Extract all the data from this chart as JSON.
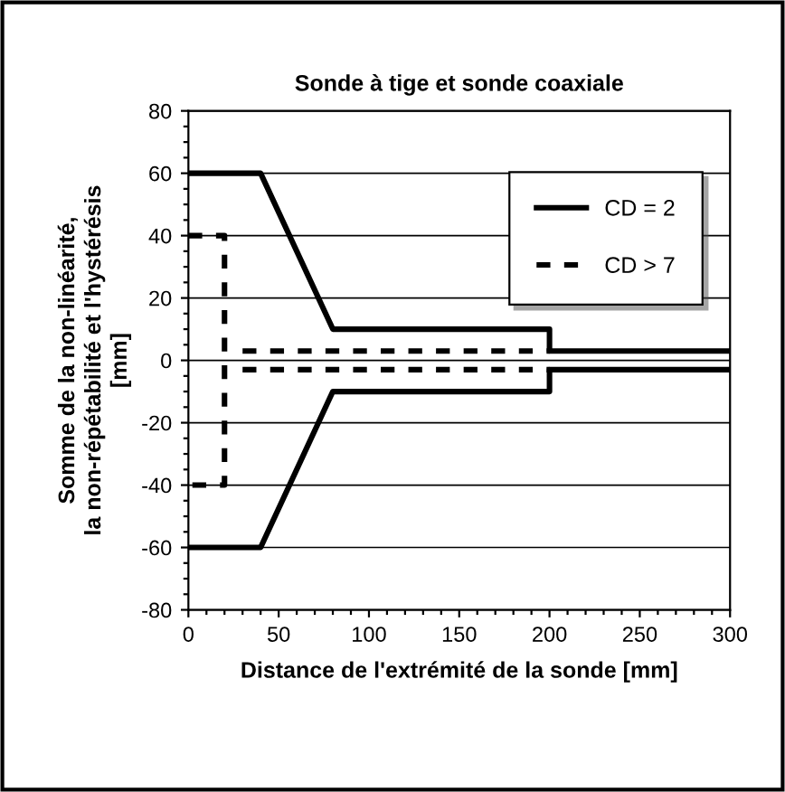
{
  "chart_data": {
    "type": "line",
    "title": "Sonde à tige et sonde coaxiale",
    "xlabel": "Distance de l'extrémité de la sonde [mm]",
    "ylabel": "Somme de la non-linéarité,\nla non-répétabilité et l'hystérésis\n[mm]",
    "series": [
      {
        "name": "CD = 2",
        "color": "#000000",
        "line_style": "solid",
        "x": [
          0,
          40,
          80,
          200,
          200,
          300
        ],
        "values": [
          60,
          60,
          10,
          10,
          3,
          3
        ]
      },
      {
        "color": "#000000",
        "line_style": "solid",
        "x": [
          0,
          40,
          80,
          200,
          200,
          300
        ],
        "values": [
          -60,
          -60,
          -10,
          -10,
          -3,
          -3
        ]
      },
      {
        "name": "CD > 7",
        "color": "#000000",
        "line_style": "dashed",
        "x": [
          0,
          20,
          20,
          0
        ],
        "values": [
          40,
          40,
          -40,
          -40
        ]
      },
      {
        "color": "#000000",
        "line_style": "dashed",
        "x": [
          30,
          200
        ],
        "values": [
          3,
          3
        ]
      },
      {
        "color": "#000000",
        "line_style": "dashed",
        "x": [
          30,
          200
        ],
        "values": [
          -3,
          -3
        ]
      }
    ],
    "xlim": [
      0,
      300
    ],
    "xticks": [
      0,
      50,
      100,
      150,
      200,
      250,
      300
    ],
    "ylim": [
      -80,
      80
    ],
    "yticks": [
      -80,
      -60,
      -40,
      -20,
      0,
      20,
      40,
      60,
      80
    ],
    "grid": "y",
    "legend": "top right",
    "marker": "none"
  }
}
